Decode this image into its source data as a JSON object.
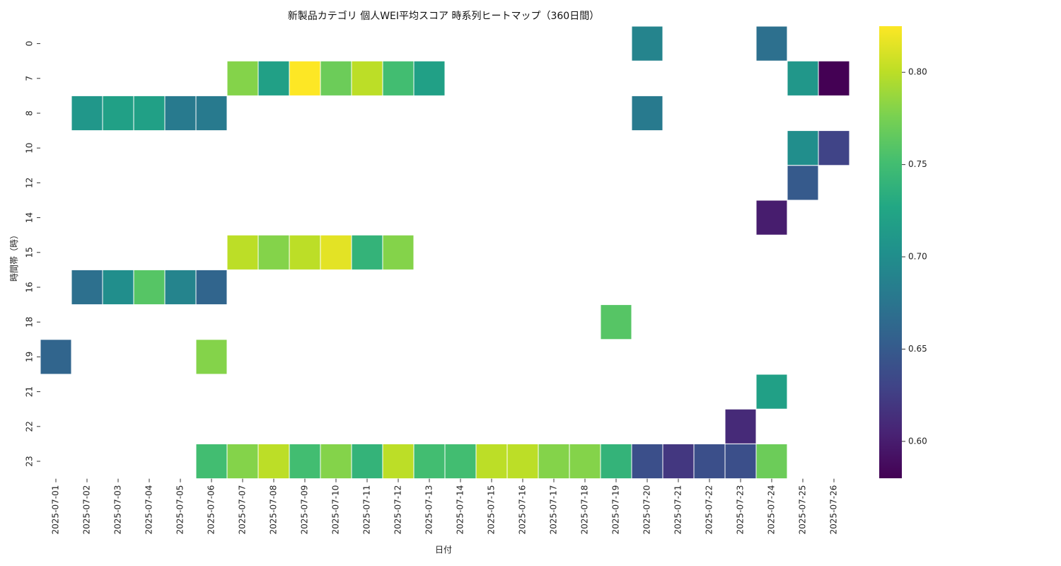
{
  "chart_data": {
    "type": "heatmap",
    "title": "新製品カテゴリ 個人WEI平均スコア 時系列ヒートマップ（360日間）",
    "xlabel": "日付",
    "ylabel": "時間帯（時）",
    "x": [
      "2025-07-01",
      "2025-07-02",
      "2025-07-03",
      "2025-07-04",
      "2025-07-05",
      "2025-07-06",
      "2025-07-07",
      "2025-07-08",
      "2025-07-09",
      "2025-07-10",
      "2025-07-11",
      "2025-07-12",
      "2025-07-13",
      "2025-07-14",
      "2025-07-15",
      "2025-07-16",
      "2025-07-17",
      "2025-07-18",
      "2025-07-19",
      "2025-07-20",
      "2025-07-21",
      "2025-07-22",
      "2025-07-23",
      "2025-07-24",
      "2025-07-25",
      "2025-07-26"
    ],
    "y": [
      "0",
      "7",
      "8",
      "10",
      "12",
      "14",
      "15",
      "16",
      "18",
      "19",
      "21",
      "22",
      "23"
    ],
    "colormap": "viridis",
    "vmin": 0.58,
    "vmax": 0.825,
    "colorbar_ticks": [
      "0.60",
      "0.65",
      "0.70",
      "0.75",
      "0.80"
    ],
    "values": [
      [
        null,
        null,
        null,
        null,
        null,
        null,
        null,
        null,
        null,
        null,
        null,
        null,
        null,
        null,
        null,
        null,
        null,
        null,
        null,
        0.69,
        null,
        null,
        null,
        0.67,
        null,
        null
      ],
      [
        null,
        null,
        null,
        null,
        null,
        null,
        0.78,
        0.72,
        0.825,
        0.77,
        0.8,
        0.75,
        0.72,
        null,
        null,
        null,
        null,
        null,
        null,
        null,
        null,
        null,
        null,
        null,
        0.71,
        0.58
      ],
      [
        null,
        0.71,
        0.72,
        0.72,
        0.68,
        0.68,
        null,
        null,
        null,
        null,
        null,
        null,
        null,
        null,
        null,
        null,
        null,
        null,
        null,
        0.68,
        null,
        null,
        null,
        null,
        null,
        null
      ],
      [
        null,
        null,
        null,
        null,
        null,
        null,
        null,
        null,
        null,
        null,
        null,
        null,
        null,
        null,
        null,
        null,
        null,
        null,
        null,
        null,
        null,
        null,
        null,
        null,
        0.7,
        0.63
      ],
      [
        null,
        null,
        null,
        null,
        null,
        null,
        null,
        null,
        null,
        null,
        null,
        null,
        null,
        null,
        null,
        null,
        null,
        null,
        null,
        null,
        null,
        null,
        null,
        null,
        0.65,
        null
      ],
      [
        null,
        null,
        null,
        null,
        null,
        null,
        null,
        null,
        null,
        null,
        null,
        null,
        null,
        null,
        null,
        null,
        null,
        null,
        null,
        null,
        null,
        null,
        null,
        0.6,
        null,
        null
      ],
      [
        null,
        null,
        null,
        null,
        null,
        null,
        0.8,
        0.78,
        0.8,
        0.815,
        0.74,
        0.78,
        null,
        null,
        null,
        null,
        null,
        null,
        null,
        null,
        null,
        null,
        null,
        null,
        null,
        null
      ],
      [
        null,
        0.67,
        0.7,
        0.76,
        0.69,
        0.66,
        null,
        null,
        null,
        null,
        null,
        null,
        null,
        null,
        null,
        null,
        null,
        null,
        null,
        null,
        null,
        null,
        null,
        null,
        null,
        null
      ],
      [
        null,
        null,
        null,
        null,
        null,
        null,
        null,
        null,
        null,
        null,
        null,
        null,
        null,
        null,
        null,
        null,
        null,
        null,
        0.76,
        null,
        null,
        null,
        null,
        null,
        null,
        null
      ],
      [
        0.66,
        null,
        null,
        null,
        null,
        0.78,
        null,
        null,
        null,
        null,
        null,
        null,
        null,
        null,
        null,
        null,
        null,
        null,
        null,
        null,
        null,
        null,
        null,
        null,
        null,
        null
      ],
      [
        null,
        null,
        null,
        null,
        null,
        null,
        null,
        null,
        null,
        null,
        null,
        null,
        null,
        null,
        null,
        null,
        null,
        null,
        null,
        null,
        null,
        null,
        null,
        0.72,
        null,
        null
      ],
      [
        null,
        null,
        null,
        null,
        null,
        null,
        null,
        null,
        null,
        null,
        null,
        null,
        null,
        null,
        null,
        null,
        null,
        null,
        null,
        null,
        null,
        null,
        0.61,
        null,
        null,
        null
      ],
      [
        null,
        null,
        null,
        null,
        null,
        0.75,
        0.78,
        0.8,
        0.75,
        0.78,
        0.74,
        0.8,
        0.75,
        0.75,
        0.8,
        0.8,
        0.78,
        0.78,
        0.74,
        0.64,
        0.62,
        0.64,
        0.64,
        0.77,
        null,
        null
      ]
    ]
  }
}
